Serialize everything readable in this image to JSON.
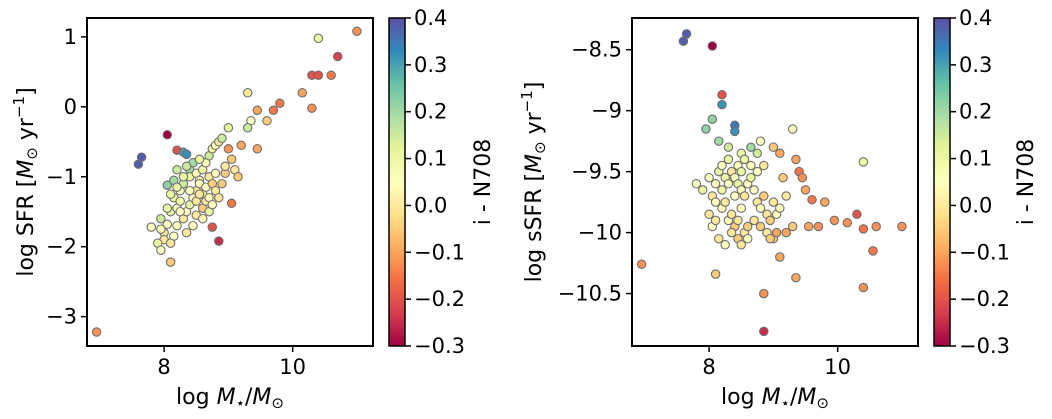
{
  "colorscale": {
    "name": "Spectral",
    "stops": [
      "#9e0142",
      "#d53e4f",
      "#f46d43",
      "#fdae61",
      "#fee08b",
      "#ffffbf",
      "#e6f598",
      "#abdda4",
      "#66c2a5",
      "#3288bd",
      "#5e4fa2"
    ],
    "range": [
      -0.3,
      0.4
    ]
  },
  "chart_data": [
    {
      "type": "scatter",
      "xlabel": "log M⋆/M⊙",
      "ylabel": "log SFR [M⊙ yr⁻¹]",
      "xlim": [
        6.8,
        11.25
      ],
      "ylim": [
        -3.42,
        1.27
      ],
      "xticks": [
        8,
        10
      ],
      "yticks": [
        -3,
        -2,
        -1,
        0,
        1
      ],
      "grid": false,
      "colorbar": {
        "label": "i - N708",
        "range": [
          -0.3,
          0.4
        ],
        "ticks": [
          "0.4",
          "0.3",
          "0.2",
          "0.1",
          "0.0",
          "−0.1",
          "−0.2",
          "−0.3"
        ]
      },
      "points": [
        [
          6.95,
          -3.22,
          -0.12
        ],
        [
          7.6,
          -0.82,
          0.38
        ],
        [
          7.65,
          -0.72,
          0.38
        ],
        [
          8.05,
          -0.4,
          -0.3
        ],
        [
          8.05,
          -1.12,
          0.22
        ],
        [
          8.1,
          -2.22,
          -0.05
        ],
        [
          8.2,
          -0.62,
          -0.2
        ],
        [
          8.3,
          -0.65,
          0.3
        ],
        [
          8.35,
          -0.68,
          0.32
        ],
        [
          8.4,
          -0.9,
          0.2
        ],
        [
          8.85,
          -1.92,
          -0.25
        ],
        [
          8.75,
          -1.72,
          -0.2
        ],
        [
          9.05,
          -1.38,
          -0.15
        ],
        [
          8.95,
          -0.95,
          -0.05
        ],
        [
          9.0,
          -0.6,
          -0.12
        ],
        [
          9.2,
          -0.55,
          -0.1
        ],
        [
          9.35,
          -0.2,
          0.05
        ],
        [
          9.45,
          -0.05,
          -0.1
        ],
        [
          9.6,
          -0.2,
          -0.05
        ],
        [
          9.7,
          -0.05,
          -0.15
        ],
        [
          9.3,
          0.2,
          0.0
        ],
        [
          9.45,
          -0.6,
          -0.1
        ],
        [
          9.8,
          0.05,
          -0.15
        ],
        [
          10.15,
          0.2,
          -0.1
        ],
        [
          10.3,
          0.45,
          -0.2
        ],
        [
          10.4,
          0.45,
          -0.2
        ],
        [
          10.4,
          0.98,
          0.1
        ],
        [
          10.6,
          0.45,
          -0.15
        ],
        [
          10.7,
          0.72,
          -0.22
        ],
        [
          10.3,
          -0.02,
          -0.12
        ],
        [
          11.0,
          1.08,
          -0.12
        ],
        [
          9.3,
          -0.3,
          0.15
        ],
        [
          7.8,
          -1.72,
          0.05
        ],
        [
          7.95,
          -1.6,
          0.15
        ],
        [
          8.0,
          -1.8,
          0.0
        ],
        [
          8.05,
          -1.68,
          0.05
        ],
        [
          8.1,
          -1.5,
          0.1
        ],
        [
          8.2,
          -1.45,
          0.05
        ],
        [
          8.15,
          -1.3,
          0.1
        ],
        [
          8.25,
          -1.2,
          0.05
        ],
        [
          8.3,
          -1.1,
          0.15
        ],
        [
          8.4,
          -1.0,
          0.1
        ],
        [
          8.5,
          -0.95,
          0.05
        ],
        [
          8.55,
          -1.05,
          0.0
        ],
        [
          8.6,
          -0.9,
          0.1
        ],
        [
          8.65,
          -0.8,
          0.05
        ],
        [
          8.7,
          -0.7,
          0.15
        ],
        [
          8.75,
          -0.6,
          0.1
        ],
        [
          8.8,
          -0.55,
          0.05
        ],
        [
          8.85,
          -0.5,
          0.0
        ],
        [
          8.9,
          -0.45,
          0.15
        ],
        [
          9.0,
          -0.3,
          0.1
        ],
        [
          8.2,
          -1.7,
          0.05
        ],
        [
          8.3,
          -1.6,
          0.0
        ],
        [
          8.35,
          -1.5,
          0.05
        ],
        [
          8.4,
          -1.4,
          0.1
        ],
        [
          8.45,
          -1.3,
          0.05
        ],
        [
          8.5,
          -1.2,
          0.0
        ],
        [
          8.55,
          -1.1,
          0.05
        ],
        [
          8.6,
          -1.25,
          0.1
        ],
        [
          8.65,
          -1.15,
          0.05
        ],
        [
          8.7,
          -1.0,
          0.0
        ],
        [
          8.75,
          -1.1,
          -0.05
        ],
        [
          8.8,
          -0.95,
          0.05
        ],
        [
          8.35,
          -1.8,
          0.0
        ],
        [
          8.45,
          -1.7,
          0.05
        ],
        [
          8.5,
          -1.55,
          0.0
        ],
        [
          8.6,
          -1.45,
          -0.05
        ],
        [
          8.25,
          -1.35,
          0.1
        ],
        [
          8.15,
          -1.85,
          0.05
        ],
        [
          8.0,
          -1.9,
          0.0
        ],
        [
          7.9,
          -1.95,
          0.1
        ],
        [
          7.95,
          -2.05,
          0.05
        ],
        [
          8.1,
          -1.95,
          0.0
        ],
        [
          8.3,
          -1.0,
          0.1
        ],
        [
          8.2,
          -0.9,
          0.15
        ],
        [
          8.45,
          -0.8,
          0.2
        ],
        [
          8.55,
          -0.75,
          0.1
        ],
        [
          8.4,
          -1.2,
          0.05
        ],
        [
          8.5,
          -1.35,
          0.0
        ],
        [
          8.65,
          -1.35,
          0.0
        ],
        [
          8.7,
          -1.3,
          0.05
        ],
        [
          8.8,
          -1.2,
          0.0
        ],
        [
          8.9,
          -1.1,
          -0.05
        ],
        [
          8.95,
          -0.85,
          0.0
        ],
        [
          9.05,
          -0.75,
          -0.05
        ],
        [
          9.1,
          -0.9,
          0.0
        ],
        [
          9.15,
          -1.0,
          -0.05
        ],
        [
          8.6,
          -1.6,
          0.05
        ],
        [
          8.7,
          -1.5,
          0.1
        ],
        [
          8.75,
          -1.4,
          0.05
        ],
        [
          8.85,
          -1.3,
          0.0
        ],
        [
          8.1,
          -1.25,
          0.1
        ],
        [
          8.15,
          -1.05,
          0.2
        ],
        [
          8.35,
          -0.85,
          0.15
        ],
        [
          8.25,
          -1.5,
          0.05
        ],
        [
          7.95,
          -1.75,
          0.05
        ],
        [
          8.05,
          -1.45,
          0.1
        ],
        [
          8.2,
          -1.15,
          0.1
        ],
        [
          8.55,
          -1.25,
          0.0
        ]
      ]
    },
    {
      "type": "scatter",
      "xlabel": "log M⋆/M⊙",
      "ylabel": "log sSFR [M⊙ yr⁻¹]",
      "xlim": [
        6.8,
        11.25
      ],
      "ylim": [
        -10.93,
        -8.24
      ],
      "xticks": [
        8,
        10
      ],
      "yticks": [
        -10.5,
        -10.0,
        -9.5,
        -9.0,
        -8.5
      ],
      "grid": false,
      "colorbar": {
        "label": "i - N708",
        "range": [
          -0.3,
          0.4
        ],
        "ticks": [
          "0.4",
          "0.3",
          "0.2",
          "0.1",
          "0.0",
          "−0.1",
          "−0.2",
          "−0.3"
        ]
      },
      "points": [
        [
          6.95,
          -10.26,
          -0.12
        ],
        [
          7.6,
          -8.43,
          0.38
        ],
        [
          7.65,
          -8.37,
          0.38
        ],
        [
          8.05,
          -8.47,
          -0.3
        ],
        [
          8.2,
          -8.87,
          -0.2
        ],
        [
          8.2,
          -8.95,
          0.32
        ],
        [
          8.4,
          -9.12,
          0.35
        ],
        [
          8.4,
          -9.17,
          0.32
        ],
        [
          7.95,
          -9.15,
          0.22
        ],
        [
          8.05,
          -9.07,
          0.22
        ],
        [
          8.15,
          -9.25,
          0.2
        ],
        [
          8.3,
          -9.3,
          0.15
        ],
        [
          8.5,
          -9.35,
          0.1
        ],
        [
          8.65,
          -9.3,
          0.2
        ],
        [
          8.75,
          -9.35,
          0.15
        ],
        [
          8.8,
          -9.25,
          0.05
        ],
        [
          9.0,
          -9.3,
          -0.05
        ],
        [
          9.1,
          -9.35,
          -0.1
        ],
        [
          9.3,
          -9.15,
          0.05
        ],
        [
          9.35,
          -9.4,
          -0.1
        ],
        [
          9.4,
          -9.5,
          -0.15
        ],
        [
          9.45,
          -9.55,
          -0.12
        ],
        [
          9.5,
          -9.65,
          -0.1
        ],
        [
          9.6,
          -9.73,
          -0.15
        ],
        [
          9.8,
          -9.75,
          -0.1
        ],
        [
          9.95,
          -9.9,
          -0.12
        ],
        [
          10.15,
          -9.92,
          -0.12
        ],
        [
          10.3,
          -9.85,
          -0.2
        ],
        [
          10.4,
          -9.42,
          0.1
        ],
        [
          10.4,
          -9.97,
          -0.15
        ],
        [
          10.6,
          -9.95,
          -0.12
        ],
        [
          10.55,
          -10.15,
          -0.15
        ],
        [
          11.0,
          -9.95,
          -0.12
        ],
        [
          10.4,
          -10.45,
          -0.12
        ],
        [
          9.35,
          -10.37,
          -0.1
        ],
        [
          8.85,
          -10.5,
          -0.12
        ],
        [
          8.85,
          -10.81,
          -0.25
        ],
        [
          8.1,
          -10.34,
          -0.05
        ],
        [
          9.1,
          -10.2,
          -0.1
        ],
        [
          9.0,
          -10.05,
          -0.05
        ],
        [
          9.2,
          -10.0,
          -0.1
        ],
        [
          9.3,
          -9.95,
          -0.05
        ],
        [
          9.55,
          -9.95,
          -0.1
        ],
        [
          9.7,
          -9.95,
          -0.12
        ],
        [
          7.8,
          -9.6,
          0.05
        ],
        [
          7.9,
          -9.65,
          0.1
        ],
        [
          8.0,
          -9.55,
          0.05
        ],
        [
          8.05,
          -9.7,
          0.0
        ],
        [
          8.1,
          -9.6,
          0.05
        ],
        [
          8.15,
          -9.5,
          0.1
        ],
        [
          8.2,
          -9.45,
          0.05
        ],
        [
          8.25,
          -9.55,
          0.1
        ],
        [
          8.3,
          -9.6,
          0.05
        ],
        [
          8.35,
          -9.5,
          0.0
        ],
        [
          8.4,
          -9.55,
          0.05
        ],
        [
          8.45,
          -9.6,
          0.1
        ],
        [
          8.5,
          -9.65,
          0.05
        ],
        [
          8.55,
          -9.7,
          0.0
        ],
        [
          8.6,
          -9.6,
          0.05
        ],
        [
          8.65,
          -9.55,
          0.1
        ],
        [
          8.7,
          -9.65,
          0.05
        ],
        [
          8.75,
          -9.75,
          0.0
        ],
        [
          8.8,
          -9.8,
          0.05
        ],
        [
          8.85,
          -9.7,
          -0.05
        ],
        [
          8.9,
          -9.85,
          0.0
        ],
        [
          8.95,
          -9.9,
          -0.05
        ],
        [
          9.0,
          -9.75,
          0.0
        ],
        [
          9.05,
          -9.85,
          0.05
        ],
        [
          8.0,
          -9.85,
          0.0
        ],
        [
          8.05,
          -9.95,
          0.05
        ],
        [
          8.1,
          -9.9,
          0.0
        ],
        [
          8.2,
          -9.8,
          0.05
        ],
        [
          8.25,
          -9.75,
          0.0
        ],
        [
          8.3,
          -9.9,
          0.05
        ],
        [
          8.35,
          -9.85,
          0.0
        ],
        [
          8.4,
          -9.95,
          -0.05
        ],
        [
          8.45,
          -9.9,
          0.0
        ],
        [
          8.5,
          -9.8,
          0.05
        ],
        [
          8.55,
          -10.0,
          0.0
        ],
        [
          8.6,
          -9.95,
          -0.05
        ],
        [
          8.15,
          -10.05,
          0.0
        ],
        [
          8.25,
          -10.1,
          0.05
        ],
        [
          8.35,
          -10.0,
          0.0
        ],
        [
          8.45,
          -10.05,
          -0.05
        ],
        [
          8.5,
          -10.1,
          0.0
        ],
        [
          8.6,
          -10.05,
          0.05
        ],
        [
          8.3,
          -9.4,
          0.1
        ],
        [
          8.45,
          -9.45,
          0.05
        ],
        [
          8.55,
          -9.4,
          0.1
        ],
        [
          8.65,
          -9.45,
          0.05
        ],
        [
          8.2,
          -9.65,
          0.1
        ],
        [
          8.1,
          -9.75,
          0.05
        ],
        [
          8.7,
          -9.9,
          0.0
        ],
        [
          8.8,
          -9.95,
          -0.05
        ],
        [
          8.9,
          -10.0,
          0.0
        ],
        [
          8.95,
          -10.05,
          -0.05
        ],
        [
          9.05,
          -10.0,
          -0.1
        ],
        [
          8.4,
          -9.7,
          0.05
        ],
        [
          8.5,
          -9.5,
          0.1
        ],
        [
          8.75,
          -9.5,
          0.05
        ],
        [
          9.2,
          -9.7,
          0.0
        ],
        [
          9.15,
          -9.55,
          -0.05
        ],
        [
          8.85,
          -9.45,
          0.0
        ],
        [
          9.1,
          -9.8,
          0.05
        ]
      ]
    }
  ]
}
